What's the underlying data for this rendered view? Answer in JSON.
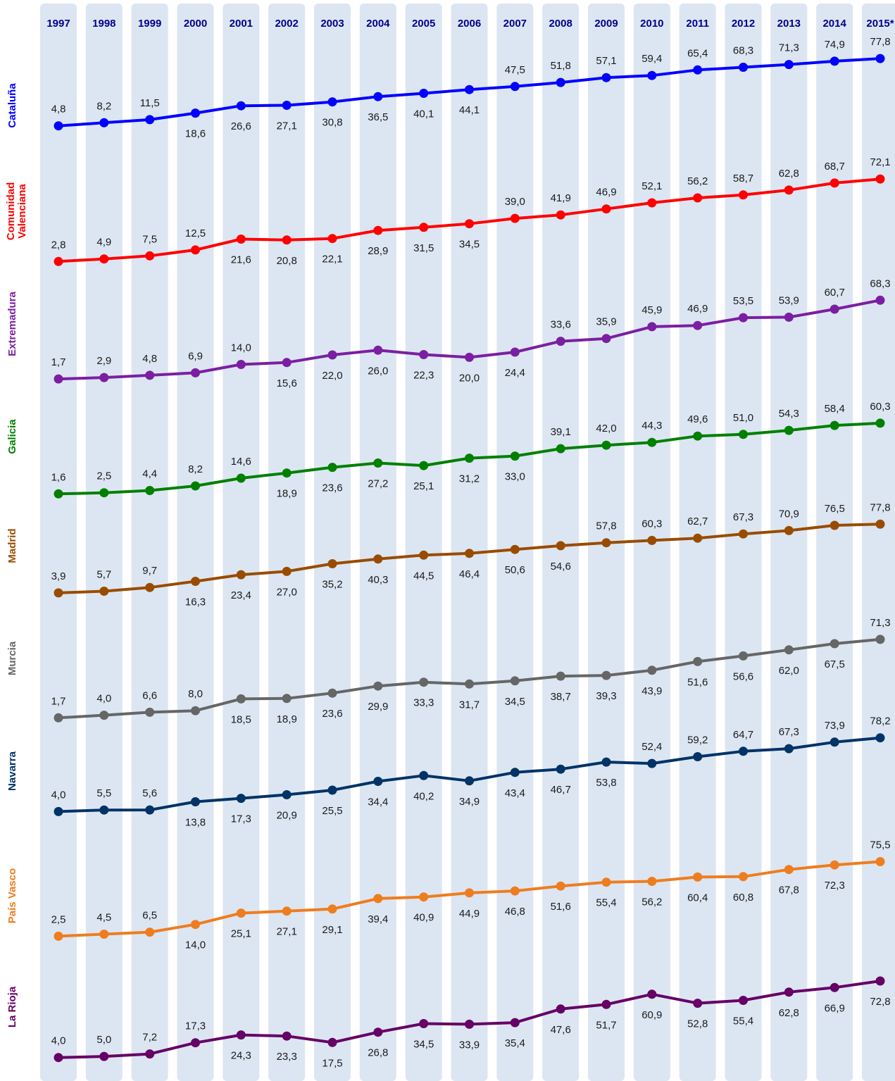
{
  "chart_data": {
    "type": "line",
    "title": "",
    "xlabel": "",
    "ylabel": "",
    "grid": false,
    "legend": "left-side region labels",
    "x": [
      "1997",
      "1998",
      "1999",
      "2000",
      "2001",
      "2002",
      "2003",
      "2004",
      "2005",
      "2006",
      "2007",
      "2008",
      "2009",
      "2010",
      "2011",
      "2012",
      "2013",
      "2014",
      "2015*"
    ],
    "series": [
      {
        "name": "Cataluña",
        "color": "#0000ff",
        "values": [
          "4,8",
          "8,2",
          "11,5",
          "18,6",
          "26,6",
          "27,1",
          "30,8",
          "36,5",
          "40,1",
          "44,1",
          "47,5",
          "51,8",
          "57,1",
          "59,4",
          "65,4",
          "68,3",
          "71,3",
          "74,9",
          "77,8"
        ]
      },
      {
        "name": "Comunidad Valenciana",
        "color": "#ff0000",
        "values": [
          "2,8",
          "4,9",
          "7,5",
          "12,5",
          "21,6",
          "20,8",
          "22,1",
          "28,9",
          "31,5",
          "34,5",
          "39,0",
          "41,9",
          "46,9",
          "52,1",
          "56,2",
          "58,7",
          "62,8",
          "68,7",
          "72,1"
        ]
      },
      {
        "name": "Extremadura",
        "color": "#7b1fa2",
        "values": [
          "1,7",
          "2,9",
          "4,8",
          "6,9",
          "14,0",
          "15,6",
          "22,0",
          "26,0",
          "22,3",
          "20,0",
          "24,4",
          "33,6",
          "35,9",
          "45,9",
          "46,9",
          "53,5",
          "53,9",
          "60,7",
          "68,3"
        ]
      },
      {
        "name": "Galicia",
        "color": "#008000",
        "values": [
          "1,6",
          "2,5",
          "4,4",
          "8,2",
          "14,6",
          "18,9",
          "23,6",
          "27,2",
          "25,1",
          "31,2",
          "33,0",
          "39,1",
          "42,0",
          "44,3",
          "49,6",
          "51,0",
          "54,3",
          "58,4",
          "60,3"
        ]
      },
      {
        "name": "Madrid",
        "color": "#994c00",
        "values": [
          "3,9",
          "5,7",
          "9,7",
          "16,3",
          "23,4",
          "27,0",
          "35,2",
          "40,3",
          "44,5",
          "46,4",
          "50,6",
          "54,6",
          "57,8",
          "60,3",
          "62,7",
          "67,3",
          "70,9",
          "76,5",
          "77,8"
        ]
      },
      {
        "name": "Murcia",
        "color": "#666666",
        "values": [
          "1,7",
          "4,0",
          "6,6",
          "8,0",
          "18,5",
          "18,9",
          "23,6",
          "29,9",
          "33,3",
          "31,7",
          "34,5",
          "38,7",
          "39,3",
          "43,9",
          "51,6",
          "56,6",
          "62,0",
          "67,5",
          "71,3"
        ]
      },
      {
        "name": "Navarra",
        "color": "#003366",
        "values": [
          "4,0",
          "5,5",
          "5,6",
          "13,8",
          "17,3",
          "20,9",
          "25,5",
          "34,4",
          "40,2",
          "34,9",
          "43,4",
          "46,7",
          "53,8",
          "52,4",
          "59,2",
          "64,7",
          "67,3",
          "73,9",
          "78,2"
        ]
      },
      {
        "name": "País Vasco",
        "color": "#ee7d1f",
        "values": [
          "2,5",
          "4,5",
          "6,5",
          "14,0",
          "25,1",
          "27,1",
          "29,1",
          "39,4",
          "40,9",
          "44,9",
          "46,8",
          "51,6",
          "55,4",
          "56,2",
          "60,4",
          "60,8",
          "67,8",
          "72,3",
          "75,5"
        ]
      },
      {
        "name": "La Rioja",
        "color": "#660066",
        "values": [
          "4,0",
          "5,0",
          "7,2",
          "17,3",
          "24,3",
          "23,3",
          "17,5",
          "26,8",
          "34,5",
          "33,9",
          "35,4",
          "47,6",
          "51,7",
          "60,9",
          "52,8",
          "55,4",
          "62,8",
          "66,9",
          "72,8"
        ]
      }
    ],
    "label_position": [
      [
        "a",
        "a",
        "a",
        "b",
        "b",
        "b",
        "b",
        "b",
        "b",
        "b",
        "a",
        "a",
        "a",
        "a",
        "a",
        "a",
        "a",
        "a",
        "a"
      ],
      [
        "a",
        "a",
        "a",
        "a",
        "b",
        "b",
        "b",
        "b",
        "b",
        "b",
        "a",
        "a",
        "a",
        "a",
        "a",
        "a",
        "a",
        "a",
        "a"
      ],
      [
        "a",
        "a",
        "a",
        "a",
        "a",
        "b",
        "b",
        "b",
        "b",
        "b",
        "b",
        "a",
        "a",
        "a",
        "a",
        "a",
        "a",
        "a",
        "a"
      ],
      [
        "a",
        "a",
        "a",
        "a",
        "a",
        "b",
        "b",
        "b",
        "b",
        "b",
        "b",
        "a",
        "a",
        "a",
        "a",
        "a",
        "a",
        "a",
        "a"
      ],
      [
        "a",
        "a",
        "a",
        "b",
        "b",
        "b",
        "b",
        "b",
        "b",
        "b",
        "b",
        "b",
        "a",
        "a",
        "a",
        "a",
        "a",
        "a",
        "a"
      ],
      [
        "a",
        "a",
        "a",
        "a",
        "b",
        "b",
        "b",
        "b",
        "b",
        "b",
        "b",
        "b",
        "b",
        "b",
        "b",
        "b",
        "b",
        "b",
        "a"
      ],
      [
        "a",
        "a",
        "a",
        "b",
        "b",
        "b",
        "b",
        "b",
        "b",
        "b",
        "b",
        "b",
        "b",
        "a",
        "a",
        "a",
        "a",
        "a",
        "a"
      ],
      [
        "a",
        "a",
        "a",
        "b",
        "b",
        "b",
        "b",
        "b",
        "b",
        "b",
        "b",
        "b",
        "b",
        "b",
        "b",
        "b",
        "b",
        "b",
        "a"
      ],
      [
        "a",
        "a",
        "a",
        "a",
        "b",
        "b",
        "b",
        "b",
        "b",
        "b",
        "b",
        "b",
        "b",
        "b",
        "b",
        "b",
        "b",
        "b",
        "b"
      ]
    ],
    "colors": {
      "column_band": "#dce6f2",
      "year_text": "#00008b"
    }
  }
}
